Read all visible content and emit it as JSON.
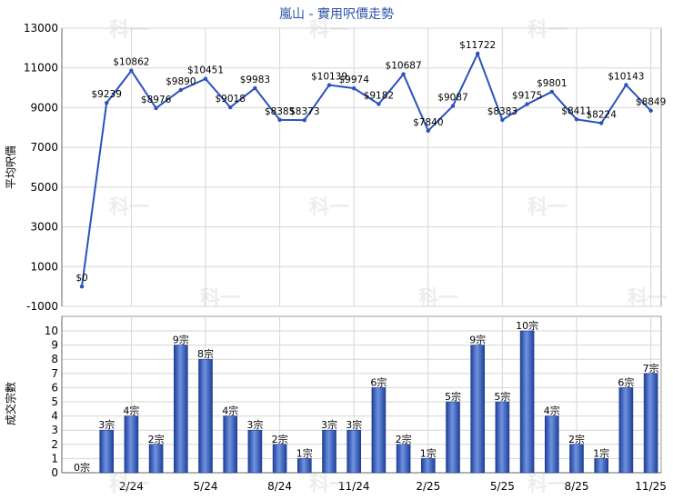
{
  "chart_data": [
    {
      "type": "line",
      "title": "嵐山 - 實用呎價走勢",
      "ylabel": "平均呎價",
      "ylim": [
        -1000,
        13000
      ],
      "yticks": [
        -1000,
        1000,
        3000,
        5000,
        7000,
        9000,
        11000,
        13000
      ],
      "grid": true,
      "line_color": "#2a52be",
      "point_labels": [
        "$0",
        "$9239",
        "$10862",
        "$8976",
        "$9890",
        "$10451",
        "$9018",
        "$9983",
        "$8385",
        "$8373",
        "$10139",
        "$9974",
        "$9182",
        "$10687",
        "$7840",
        "$9087",
        "$11722",
        "$8383",
        "$9175",
        "$9801",
        "$8411",
        "$8224",
        "$10143",
        "$8849"
      ],
      "values": [
        0,
        9239,
        10862,
        8976,
        9890,
        10451,
        9018,
        9983,
        8385,
        8373,
        10139,
        9974,
        9182,
        10687,
        7840,
        9087,
        11722,
        8383,
        9175,
        9801,
        8411,
        8224,
        10143,
        8849
      ]
    },
    {
      "type": "bar",
      "ylabel": "成交宗數",
      "ylim": [
        0,
        10
      ],
      "yticks": [
        0,
        1,
        2,
        3,
        4,
        5,
        6,
        7,
        8,
        9,
        10
      ],
      "grid": true,
      "bar_color": "#3a66c4",
      "categories": [
        "",
        "",
        "2/24",
        "",
        "",
        "5/24",
        "",
        "",
        "8/24",
        "",
        "",
        "11/24",
        "",
        "",
        "2/25",
        "",
        "",
        "5/25",
        "",
        "",
        "8/25",
        "",
        "",
        "11/25"
      ],
      "bar_labels": [
        "0宗",
        "3宗",
        "4宗",
        "2宗",
        "9宗",
        "8宗",
        "4宗",
        "3宗",
        "2宗",
        "1宗",
        "3宗",
        "3宗",
        "6宗",
        "2宗",
        "1宗",
        "5宗",
        "9宗",
        "5宗",
        "10宗",
        "4宗",
        "2宗",
        "1宗",
        "6宗",
        "7宗"
      ],
      "values": [
        0,
        3,
        4,
        2,
        9,
        8,
        4,
        3,
        2,
        1,
        3,
        3,
        6,
        2,
        1,
        5,
        9,
        5,
        10,
        4,
        2,
        1,
        6,
        7
      ]
    }
  ],
  "watermark": "科一"
}
